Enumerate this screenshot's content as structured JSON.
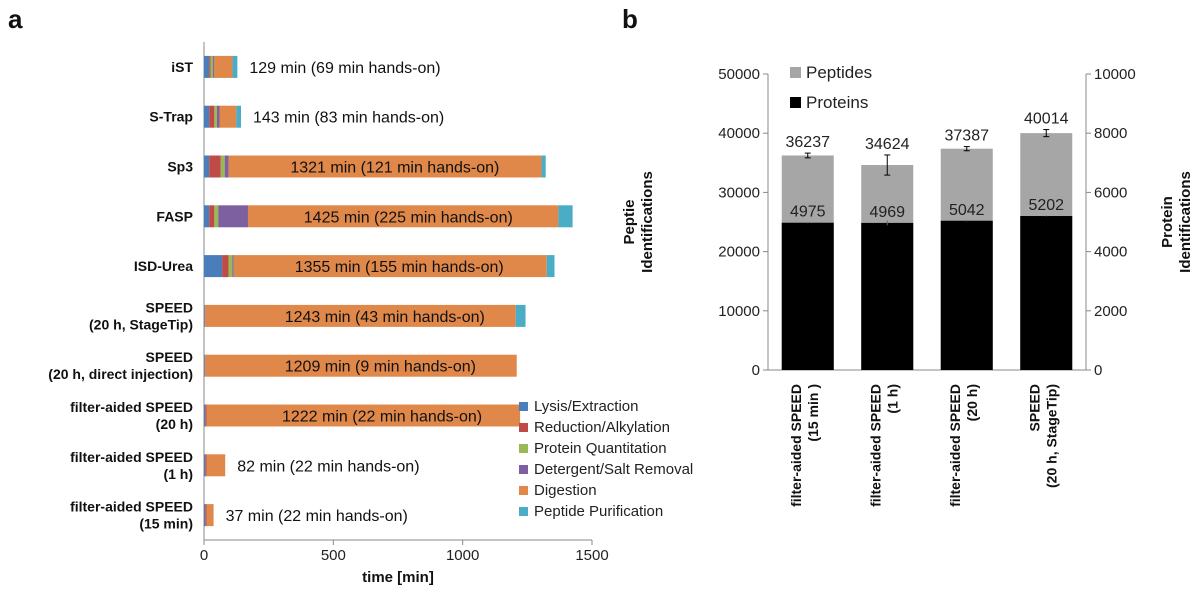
{
  "panel_a_label": "a",
  "panel_b_label": "b",
  "chart_data": [
    {
      "type": "bar",
      "orientation": "horizontal",
      "stacked": true,
      "xlabel": "time [min]",
      "xlim": [
        0,
        1500
      ],
      "xticks": [
        0,
        500,
        1000,
        1500
      ],
      "categories": [
        [
          "iST"
        ],
        [
          "S-Trap"
        ],
        [
          "Sp3"
        ],
        [
          "FASP"
        ],
        [
          "ISD-Urea"
        ],
        [
          "SPEED",
          "(20 h, StageTip)"
        ],
        [
          "SPEED",
          "(20 h, direct injection)"
        ],
        [
          "filter-aided SPEED",
          "(20 h)"
        ],
        [
          "filter-aided SPEED",
          "(1 h)"
        ],
        [
          "filter-aided SPEED",
          "(15 min)"
        ]
      ],
      "series": [
        {
          "name": "Lysis/Extraction",
          "color": "#4a7ebb",
          "values": [
            20,
            20,
            20,
            20,
            70,
            3,
            3,
            5,
            5,
            5
          ]
        },
        {
          "name": "Reduction/Alkylation",
          "color": "#be4b48",
          "values": [
            5,
            20,
            45,
            20,
            25,
            2,
            2,
            5,
            5,
            5
          ]
        },
        {
          "name": "Protein Quantitation",
          "color": "#98b954",
          "values": [
            10,
            10,
            15,
            15,
            15,
            0,
            0,
            0,
            0,
            0
          ]
        },
        {
          "name": "Detergent/Salt Removal",
          "color": "#7d60a0",
          "values": [
            5,
            10,
            15,
            115,
            5,
            0,
            0,
            0,
            0,
            0
          ]
        },
        {
          "name": "Digestion",
          "color": "#e0884a",
          "values": [
            70,
            65,
            1210,
            1200,
            1210,
            1200,
            1204,
            1212,
            72,
            27
          ]
        },
        {
          "name": "Peptide Purification",
          "color": "#4bacc6",
          "values": [
            19,
            18,
            16,
            55,
            30,
            38,
            0,
            0,
            0,
            0
          ]
        }
      ],
      "annotations": [
        "129 min (69 min hands-on)",
        "143 min (83 min hands-on)",
        "1321 min (121 min hands-on)",
        "1425 min (225 min hands-on)",
        "1355 min (155 min hands-on)",
        "1243 min (43 min hands-on)",
        "1209 min (9 min hands-on)",
        "1222 min (22 min hands-on)",
        "82 min (22 min hands-on)",
        "37 min (22 min hands-on)"
      ],
      "legend_position": "bottom-right"
    },
    {
      "type": "bar",
      "stacked": false,
      "categories": [
        [
          "filter-aided SPEED",
          "(15 min )"
        ],
        [
          "filter-aided SPEED",
          "(1 h)"
        ],
        [
          "filter-aided SPEED",
          "(20 h)"
        ],
        [
          "SPEED",
          "(20 h, StageTip)"
        ]
      ],
      "ylabel_left": [
        "Peptie",
        "Identifications"
      ],
      "ylabel_right": [
        "Protein",
        "Identifications"
      ],
      "ylim_left": [
        0,
        50000
      ],
      "yticks_left": [
        0,
        10000,
        20000,
        30000,
        40000,
        50000
      ],
      "ylim_right": [
        0,
        10000
      ],
      "yticks_right": [
        0,
        2000,
        4000,
        6000,
        8000,
        10000
      ],
      "series": [
        {
          "name": "Peptides",
          "axis": "left",
          "color": "#a6a6a6",
          "values": [
            36237,
            34624,
            37387,
            40014
          ],
          "errors": [
            400,
            1700,
            350,
            600
          ]
        },
        {
          "name": "Proteins",
          "axis": "right",
          "color": "#000000",
          "values": [
            4975,
            4969,
            5042,
            5202
          ],
          "errors": [
            15,
            80,
            20,
            15
          ]
        }
      ],
      "legend_position": "top-left"
    }
  ]
}
